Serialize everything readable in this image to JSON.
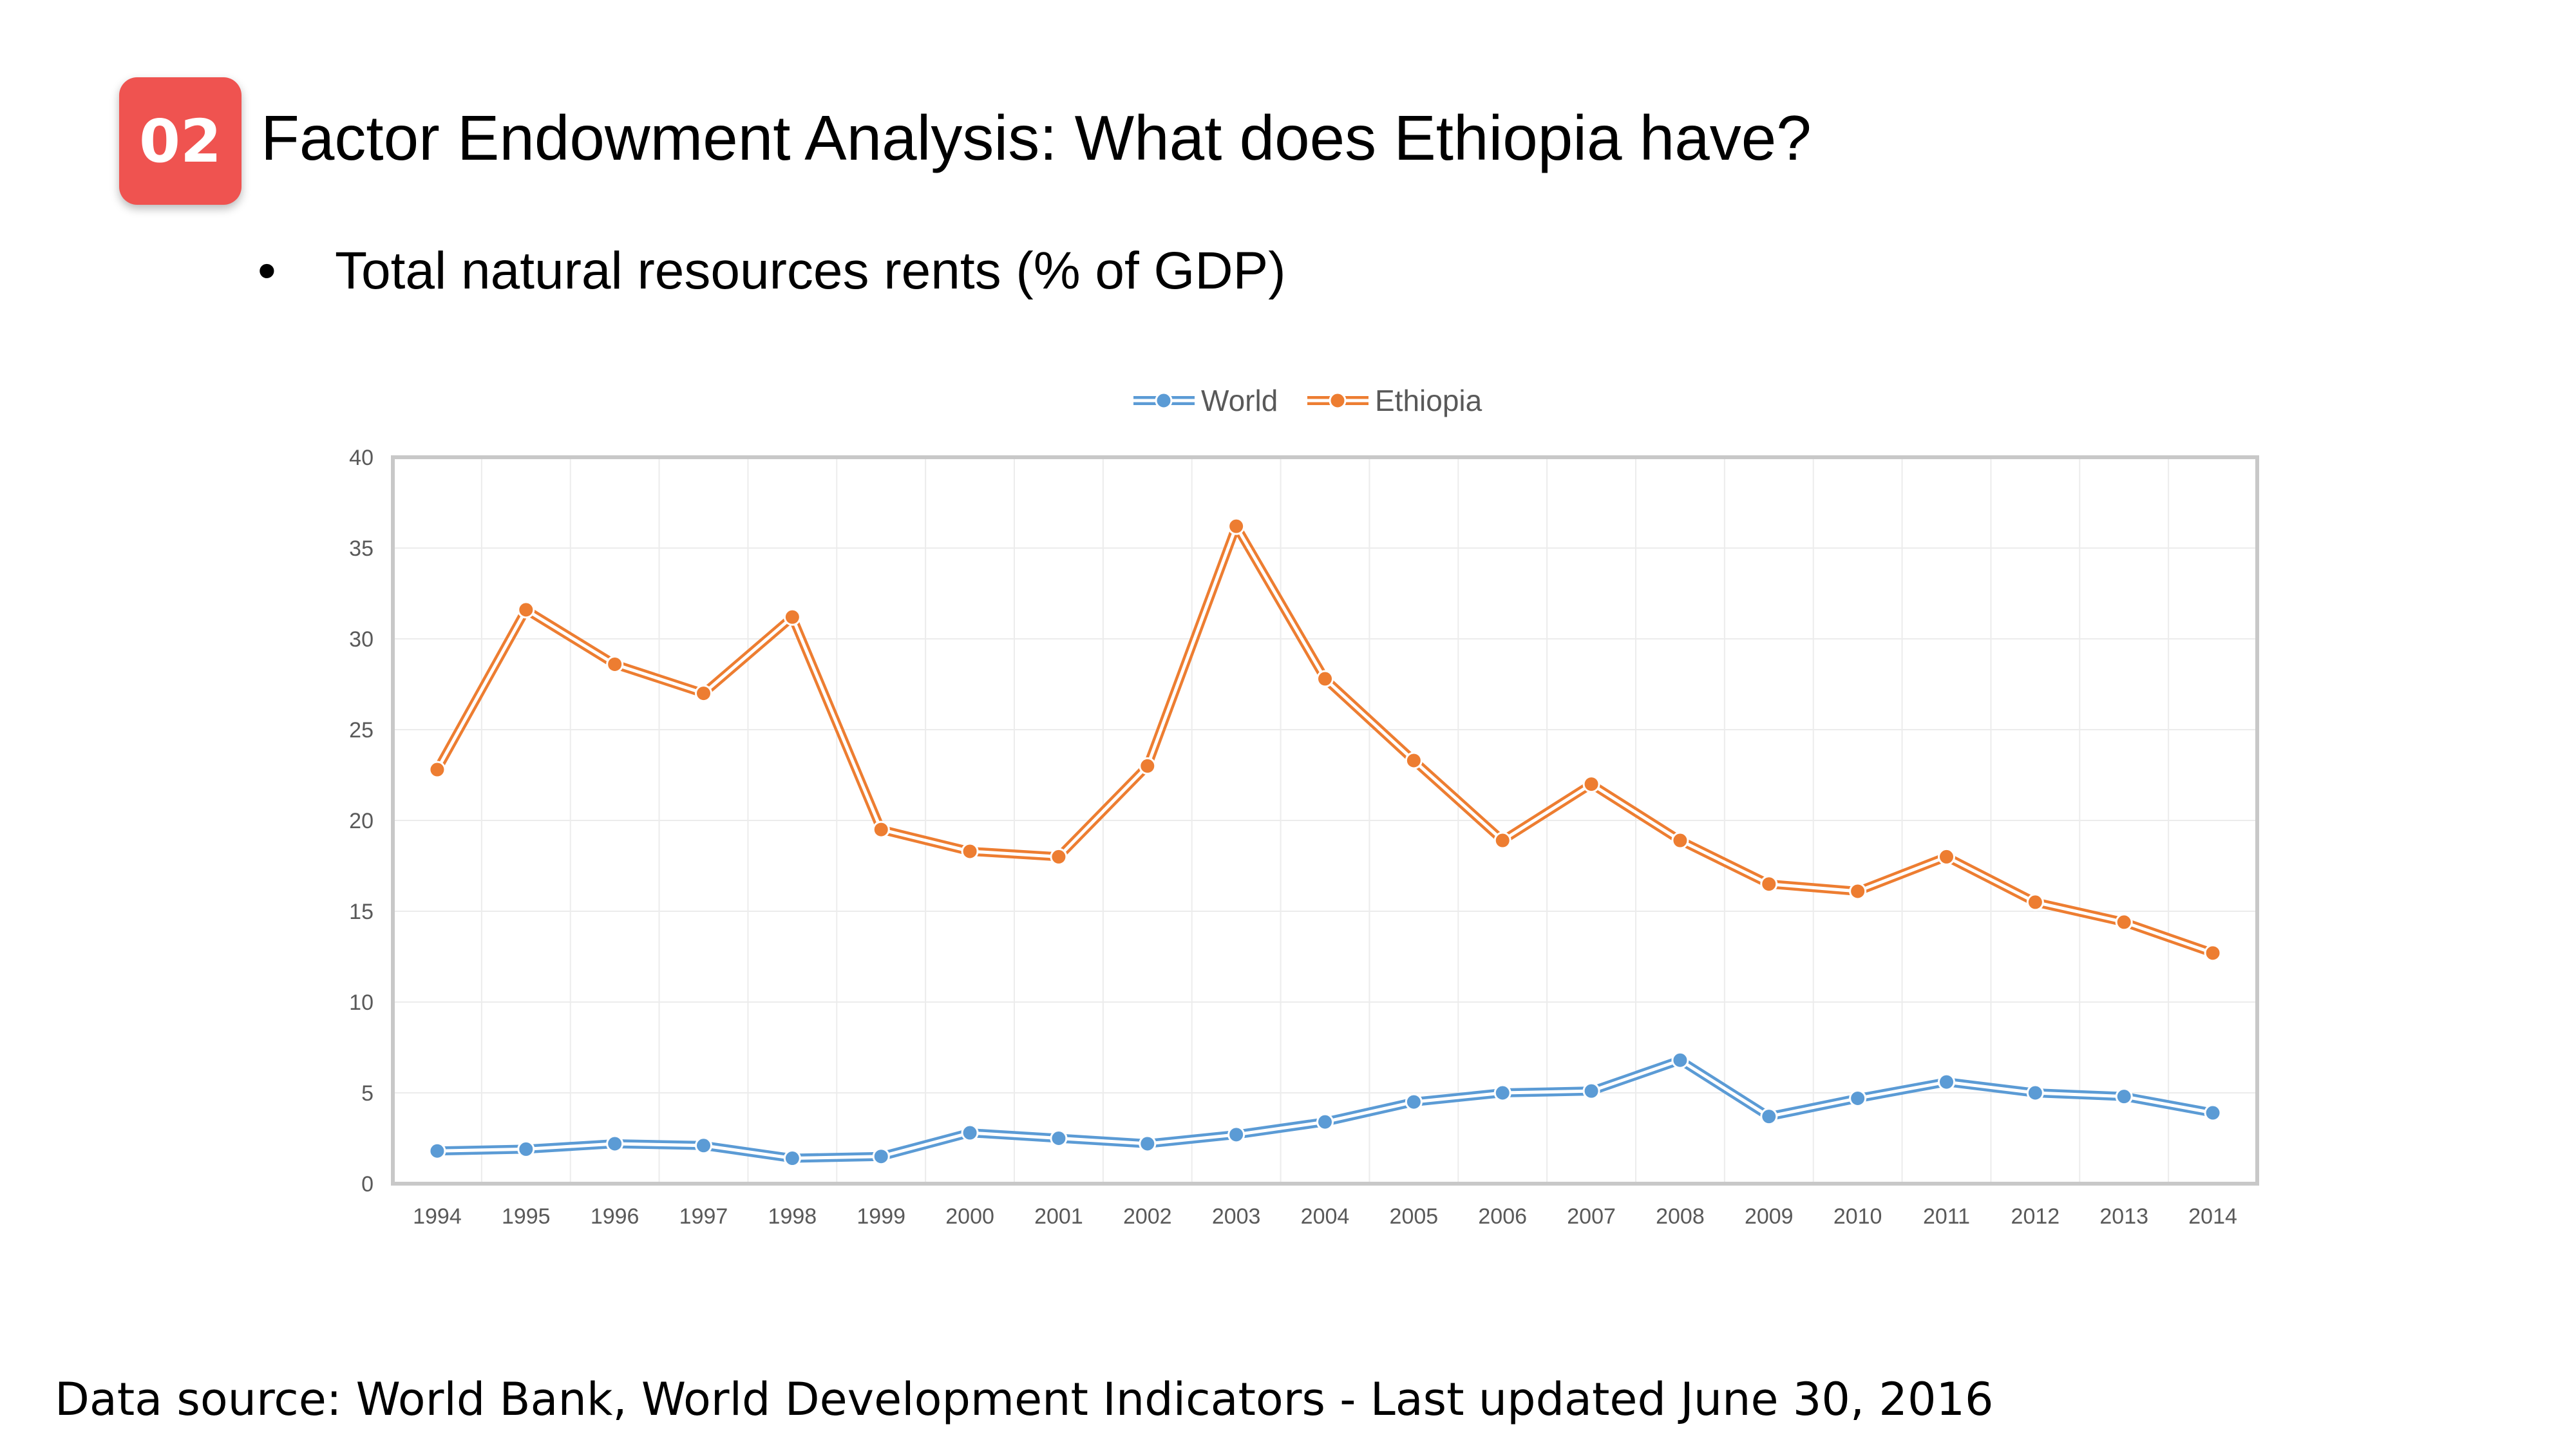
{
  "header": {
    "badge": "02",
    "title": "Factor Endowment Analysis: What does Ethiopia have?",
    "bullet": "•",
    "subtitle": "Total natural resources rents (% of GDP)"
  },
  "footer": {
    "source": "Data source: World Bank, World Development Indicators - Last updated June 30, 2016"
  },
  "chart_data": {
    "type": "line",
    "title": "Total natural resources rents (% of GDP)",
    "xlabel": "",
    "ylabel": "",
    "ylim": [
      0,
      40
    ],
    "yticks": [
      0,
      5,
      10,
      15,
      20,
      25,
      30,
      35,
      40
    ],
    "grid": true,
    "legend_position": "top-center",
    "categories": [
      "1994",
      "1995",
      "1996",
      "1997",
      "1998",
      "1999",
      "2000",
      "2001",
      "2002",
      "2003",
      "2004",
      "2005",
      "2006",
      "2007",
      "2008",
      "2009",
      "2010",
      "2011",
      "2012",
      "2013",
      "2014"
    ],
    "series": [
      {
        "name": "World",
        "color": "#5b9bd5",
        "values": [
          1.8,
          1.9,
          2.2,
          2.1,
          1.4,
          1.5,
          2.8,
          2.5,
          2.2,
          2.7,
          3.4,
          4.5,
          5.0,
          5.1,
          6.8,
          3.7,
          4.7,
          5.6,
          5.0,
          4.8,
          3.9
        ]
      },
      {
        "name": "Ethiopia",
        "color": "#ed7d31",
        "values": [
          22.8,
          31.6,
          28.6,
          27.0,
          31.2,
          19.5,
          18.3,
          18.0,
          23.0,
          36.2,
          27.8,
          23.3,
          18.9,
          22.0,
          18.9,
          16.5,
          16.1,
          18.0,
          15.5,
          14.4,
          12.7
        ]
      }
    ]
  }
}
